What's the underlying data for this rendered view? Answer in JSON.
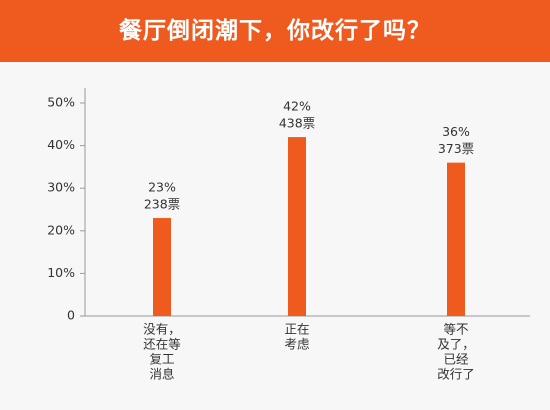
{
  "chart_data": {
    "type": "bar",
    "title": "餐厅倒闭潮下，你改行了吗？",
    "categories": [
      [
        "没有，",
        "还在等",
        "复工",
        "消息"
      ],
      [
        "正在",
        "考虑"
      ],
      [
        "等不",
        "及了，",
        "已经",
        "改行了"
      ]
    ],
    "values": [
      23,
      42,
      36
    ],
    "value_labels": [
      "23%",
      "42%",
      "36%"
    ],
    "vote_labels": [
      "238票",
      "438票",
      "373票"
    ],
    "color": "#ef5b1f",
    "ylim": [
      0,
      50
    ],
    "yticks": [
      0,
      {
        "value": 10,
        "label": "10%"
      },
      {
        "value": 20,
        "label": "20%"
      },
      {
        "value": 30,
        "label": "30%"
      },
      {
        "value": 40,
        "label": "40%"
      },
      {
        "value": 50,
        "label": "50%"
      }
    ]
  }
}
